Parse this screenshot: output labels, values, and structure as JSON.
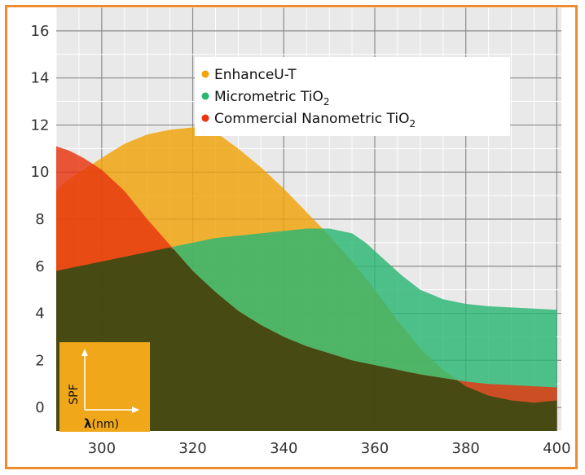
{
  "chart_data": {
    "type": "area",
    "title": "",
    "xlabel": "",
    "ylabel": "",
    "xlim": [
      290,
      401
    ],
    "ylim": [
      -1,
      17
    ],
    "grid": true,
    "legend_position": "top-right",
    "x_ticks": [
      300,
      320,
      340,
      360,
      380,
      400
    ],
    "y_ticks": [
      0,
      2,
      4,
      6,
      8,
      10,
      12,
      14,
      16
    ],
    "series": [
      {
        "name": "EnhanceU-T",
        "color": "#f0a30a",
        "x": [
          290,
          292,
          296,
          300,
          305,
          310,
          315,
          320,
          322,
          325,
          330,
          335,
          340,
          345,
          350,
          355,
          360,
          365,
          370,
          375,
          380,
          385,
          390,
          395,
          400
        ],
        "y": [
          9.2,
          9.6,
          10.1,
          10.6,
          11.2,
          11.6,
          11.8,
          11.9,
          11.9,
          11.7,
          11.0,
          10.2,
          9.3,
          8.3,
          7.3,
          6.2,
          5.0,
          3.7,
          2.5,
          1.6,
          0.9,
          0.5,
          0.3,
          0.2,
          0.3
        ]
      },
      {
        "name": "Micrometric TiO2",
        "color": "#2bb673",
        "x": [
          290,
          295,
          300,
          305,
          310,
          315,
          320,
          325,
          330,
          335,
          340,
          345,
          350,
          355,
          358,
          362,
          366,
          370,
          375,
          380,
          385,
          390,
          395,
          400
        ],
        "y": [
          5.8,
          6.0,
          6.2,
          6.4,
          6.6,
          6.8,
          7.0,
          7.2,
          7.3,
          7.4,
          7.5,
          7.6,
          7.6,
          7.4,
          7.0,
          6.3,
          5.6,
          5.0,
          4.6,
          4.4,
          4.3,
          4.25,
          4.2,
          4.15
        ]
      },
      {
        "name": "Commercial Nanometric TiO2",
        "color": "#e8340f",
        "x": [
          290,
          293,
          296,
          300,
          305,
          310,
          315,
          320,
          325,
          330,
          335,
          340,
          345,
          350,
          355,
          360,
          365,
          370,
          375,
          380,
          385,
          390,
          395,
          400
        ],
        "y": [
          11.1,
          10.9,
          10.6,
          10.1,
          9.2,
          8.0,
          6.9,
          5.8,
          4.9,
          4.1,
          3.5,
          3.0,
          2.6,
          2.3,
          2.0,
          1.8,
          1.6,
          1.4,
          1.25,
          1.1,
          1.0,
          0.95,
          0.9,
          0.85
        ]
      }
    ],
    "legend": [
      {
        "label": "EnhanceU-T",
        "color": "#f0a30a",
        "base": "EnhanceU-T",
        "subscript": ""
      },
      {
        "label": "Micrometric TiO2",
        "color": "#2bb673",
        "base": "Micrometric TiO",
        "subscript": "2"
      },
      {
        "label": "Commercial Nanometric TiO2",
        "color": "#e8340f",
        "base": "Commercial Nanometric TiO",
        "subscript": "2"
      }
    ],
    "inset": {
      "ylabel": "SPF",
      "xlabel_symbol": "λ",
      "xlabel_unit": "(nm)"
    }
  }
}
